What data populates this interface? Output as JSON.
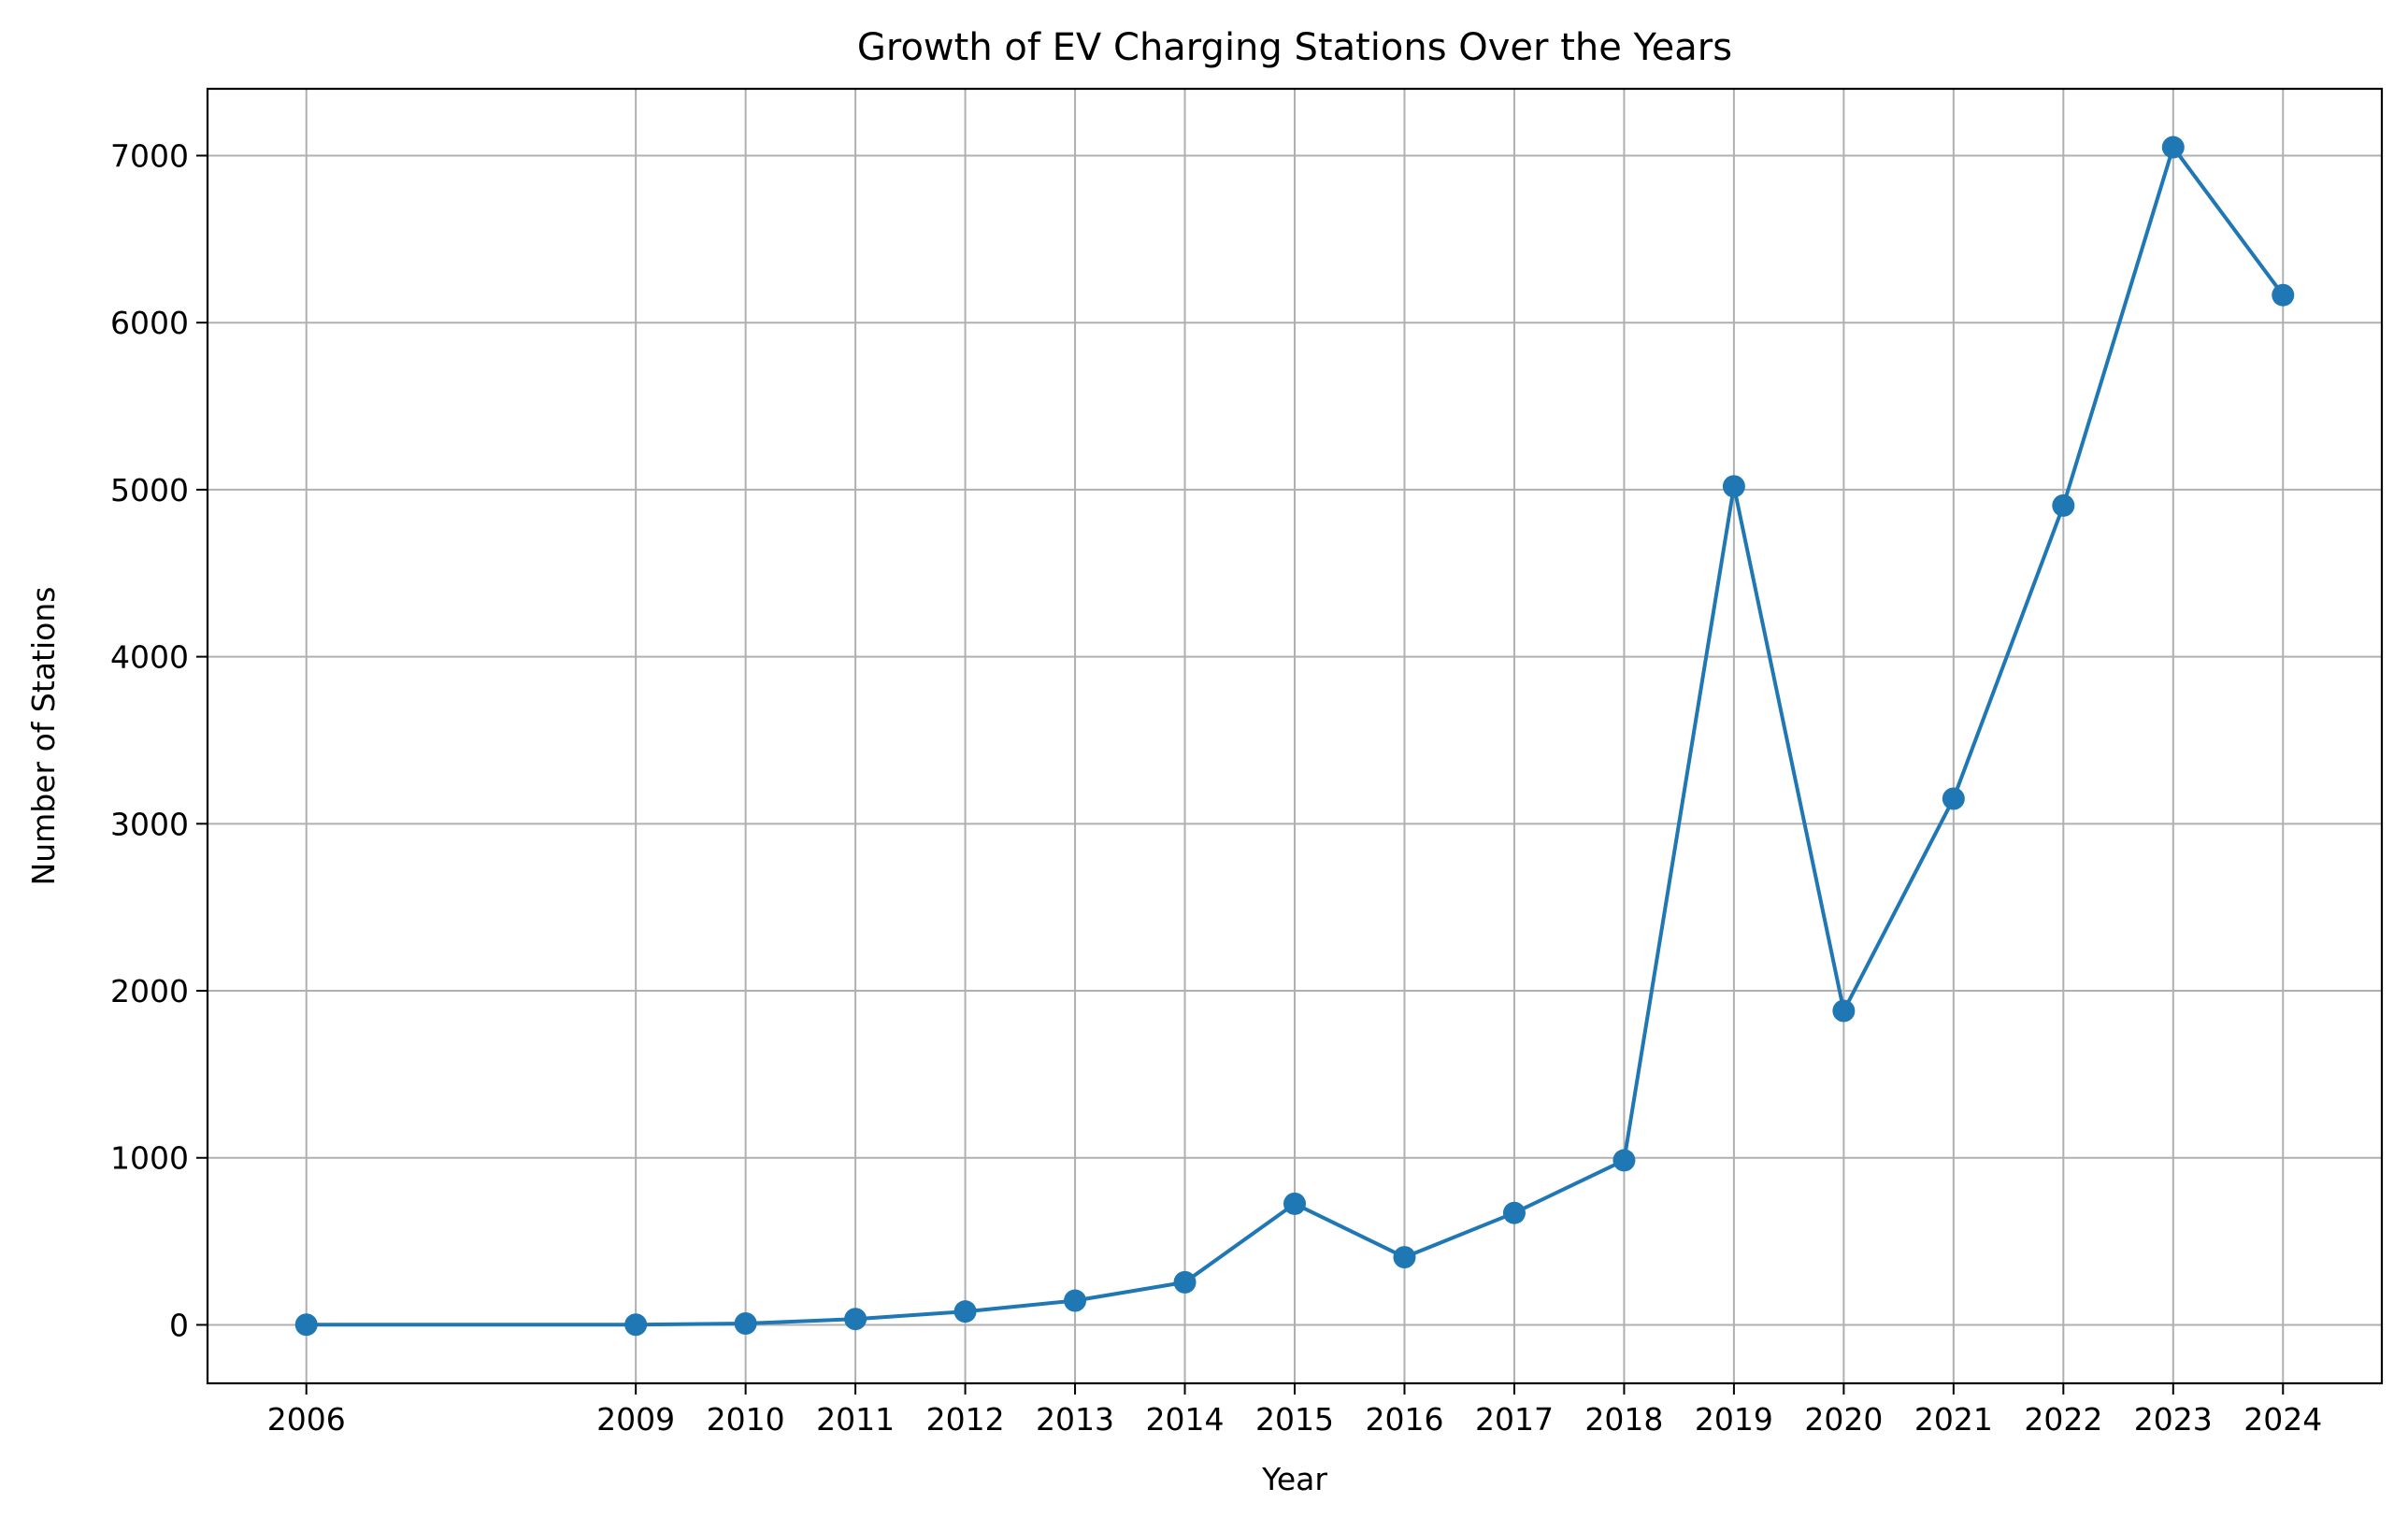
{
  "chart_data": {
    "type": "line",
    "title": "Growth of EV Charging Stations Over the Years",
    "xlabel": "Year",
    "ylabel": "Number of Stations",
    "x": [
      2006,
      2009,
      2010,
      2011,
      2012,
      2013,
      2014,
      2015,
      2016,
      2017,
      2018,
      2019,
      2020,
      2021,
      2022,
      2023,
      2024
    ],
    "series": [
      {
        "values": [
          1,
          1,
          8,
          35,
          80,
          145,
          255,
          725,
          405,
          670,
          985,
          5020,
          1880,
          3150,
          4905,
          7050,
          6165
        ],
        "color": "#1f77b4",
        "marker": "circle"
      }
    ],
    "xticks": [
      "2006",
      "2009",
      "2010",
      "2011",
      "2012",
      "2013",
      "2014",
      "2015",
      "2016",
      "2017",
      "2018",
      "2019",
      "2020",
      "2021",
      "2022",
      "2023",
      "2024"
    ],
    "yticks": [
      0,
      1000,
      2000,
      3000,
      4000,
      5000,
      6000,
      7000
    ],
    "ytick_labels": [
      "0",
      "1000",
      "2000",
      "3000",
      "4000",
      "5000",
      "6000",
      "7000"
    ],
    "xlim": [
      2005.1,
      2024.9
    ],
    "ylim": [
      -350,
      7400
    ],
    "grid": true,
    "legend": false
  }
}
